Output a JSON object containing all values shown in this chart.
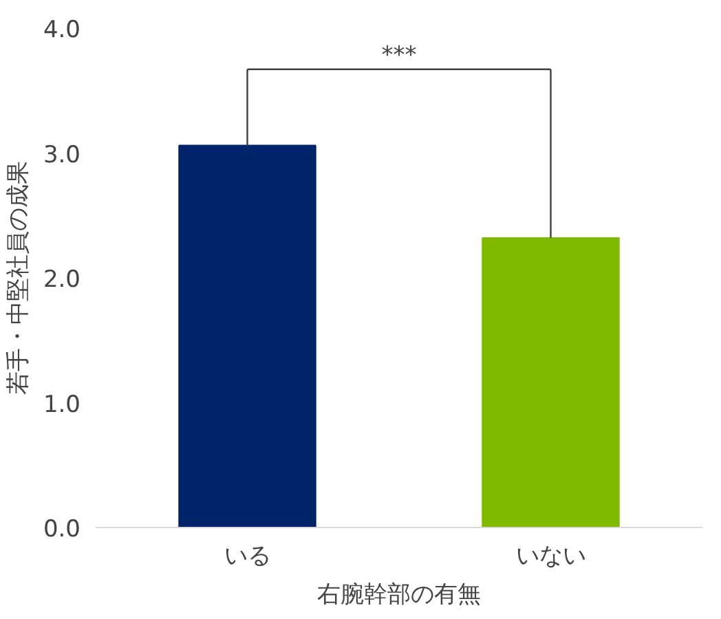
{
  "chart_data": {
    "type": "bar",
    "categories": [
      "いる",
      "いない"
    ],
    "colors": [
      "#002469",
      "#7fba00"
    ],
    "values": [
      3.06,
      2.32
    ],
    "xlabel": "右腕幹部の有無",
    "ylabel": "若手・中堅社員の成果",
    "ylim": [
      0,
      4
    ],
    "yticks": [
      {
        "value": 0,
        "label": "0.0"
      },
      {
        "value": 1,
        "label": "1.0"
      },
      {
        "value": 2,
        "label": "2.0"
      },
      {
        "value": 3,
        "label": "3.0"
      },
      {
        "value": 4,
        "label": "4.0"
      }
    ],
    "annotations": [
      "***"
    ],
    "grid": false
  }
}
